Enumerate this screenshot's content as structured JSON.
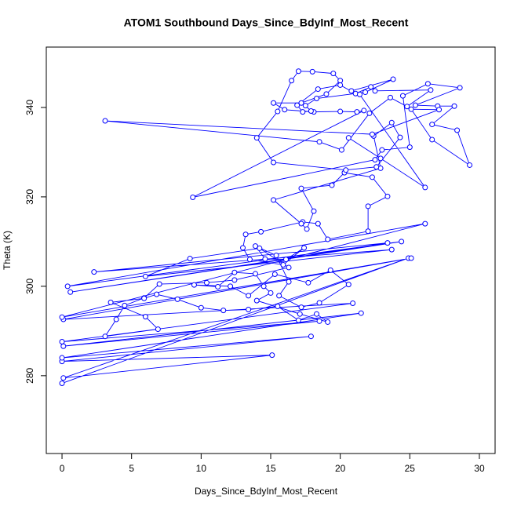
{
  "chart_data": {
    "type": "line",
    "markers": true,
    "title": "ATOM1 Southbound Days_Since_BdyInf_Most_Recent",
    "xlabel": "Days_Since_BdyInf_Most_Recent",
    "ylabel": "Theta (K)",
    "color": "#0000ff",
    "xlim": [
      -1.13,
      31.13
    ],
    "ylim": [
      262.6,
      353.5
    ],
    "xticks": [
      0,
      5,
      10,
      15,
      20,
      25,
      30
    ],
    "yticks": [
      280,
      300,
      320,
      340
    ],
    "x": [
      0,
      24.9,
      0.1,
      15.1,
      0,
      17.9,
      0,
      21.5,
      0.1,
      18.5,
      0,
      20.9,
      0.1,
      25.1,
      0,
      26.1,
      0.4,
      24.4,
      0.6,
      23.4,
      2.3,
      23.7,
      6,
      9.2,
      14.2,
      16.3,
      12.4,
      10.4,
      7,
      5.9,
      4.5,
      3.9,
      3.1,
      6.9,
      6,
      3.5,
      5.9,
      6.8,
      8.3,
      10,
      11.6,
      13.4,
      15.5,
      17,
      18.3,
      19.1,
      17.1,
      14,
      15,
      14.5,
      13.9,
      12.4,
      11.2,
      9.5,
      12.1,
      13.4,
      15.3,
      17.7,
      19.3,
      20.6,
      18.5,
      17.2,
      15.6,
      16.3,
      15.4,
      13.9,
      14.6,
      16.1,
      17.4,
      15.9,
      13.5,
      13,
      13.2,
      14.3,
      17.3,
      18.4,
      19.1,
      22,
      22,
      23.4,
      22.3,
      20.3,
      19.4,
      17.2,
      18.1,
      17.6,
      17.2,
      15.2,
      22.9,
      22.4,
      23.7,
      24.3,
      22.6,
      20.4,
      15.2,
      14,
      15.5,
      16.5,
      17,
      18,
      19.5,
      20,
      19,
      17.2,
      15.2,
      16,
      18.1,
      20,
      21.2,
      21.7,
      9.4,
      22.5,
      23,
      25,
      24.5,
      26.3,
      28.6,
      25.4,
      27,
      28.2,
      26.6,
      28.4,
      29.3,
      26.6,
      25.1,
      27.1,
      22.3,
      3.1,
      18.5,
      20.1,
      22.1,
      23.6,
      24.8,
      26.5,
      22.5,
      22.2,
      21.1,
      20,
      18.4,
      16.9,
      17.3,
      17.9,
      17.5,
      18.3,
      21.8,
      23.8,
      20.8,
      21.4,
      26.1,
      22.9,
      20.6
    ],
    "y": [
      278.3,
      306.3,
      279.5,
      284.6,
      283.2,
      288.8,
      284,
      294,
      286.6,
      292.2,
      287.6,
      296.2,
      292.6,
      306.3,
      293.1,
      314,
      300,
      310,
      298.7,
      309.7,
      303.2,
      308.2,
      302.2,
      306.2,
      308.5,
      304.2,
      301.4,
      300.8,
      300.5,
      297.4,
      295.7,
      292.6,
      288.8,
      290.4,
      293.2,
      296.4,
      297.3,
      298.2,
      297.1,
      295.2,
      294.6,
      294.8,
      295.5,
      292.4,
      293.8,
      292,
      293.8,
      296.8,
      298.5,
      300,
      302.8,
      303.1,
      299.9,
      300.3,
      300,
      297.9,
      302.7,
      300.8,
      303.6,
      300.4,
      296.3,
      295.3,
      297.9,
      301,
      306.9,
      309,
      306.1,
      306,
      308.6,
      304.8,
      306,
      308.6,
      311.6,
      312.2,
      314.4,
      314,
      310.5,
      312.3,
      317.9,
      320.1,
      324.4,
      325.4,
      322.6,
      321.9,
      316.8,
      312.8,
      314,
      319.3,
      326.4,
      333.6,
      336.6,
      333.3,
      326.7,
      326,
      327.7,
      333.2,
      339.1,
      346,
      348.1,
      348,
      347.6,
      346,
      343,
      341,
      341,
      339.5,
      339,
      339.1,
      339,
      339.3,
      319.9,
      328.3,
      330.5,
      331.1,
      342.6,
      345.3,
      344.4,
      340.5,
      340.3,
      340.3,
      336.2,
      334.9,
      327.1,
      332.8,
      339.6,
      339.5,
      334,
      337,
      332.3,
      330.5,
      338.7,
      342.2,
      340.2,
      343.9,
      343.7,
      344.6,
      343.1,
      345,
      344.1,
      340.5,
      339,
      339.2,
      340.4,
      342,
      343.4,
      346.3,
      343.7,
      342.9,
      322.1,
      328.6,
      333.2
    ]
  }
}
